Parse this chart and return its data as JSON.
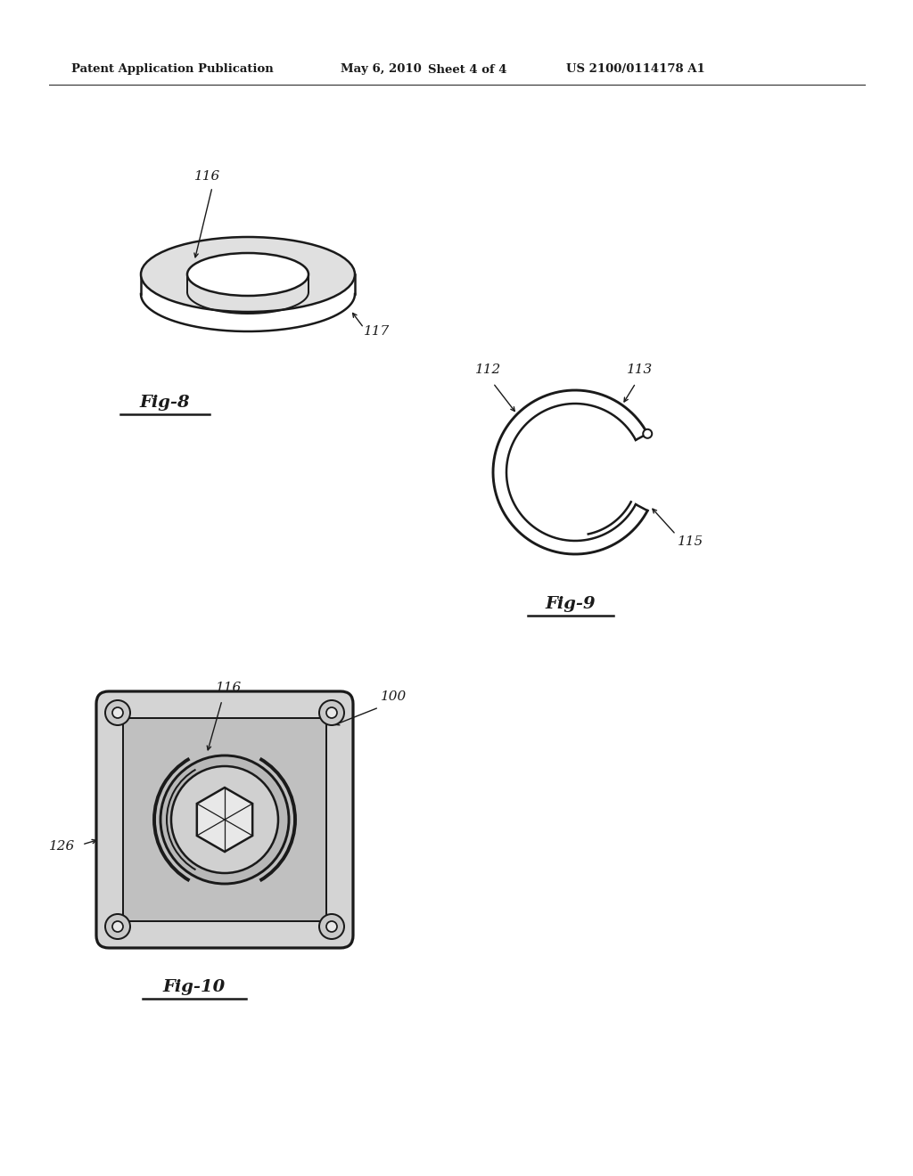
{
  "bg_color": "#ffffff",
  "header_text": "Patent Application Publication",
  "header_date": "May 6, 2010",
  "header_sheet": "Sheet 4 of 4",
  "header_patent": "US 2100/0114178 A1",
  "fig8_label": "Fig-8",
  "fig9_label": "Fig-9",
  "fig10_label": "Fig-10",
  "label_116_fig8": "116",
  "label_117_fig8": "117",
  "label_112_fig9": "112",
  "label_113_fig9": "113",
  "label_115_fig9": "115",
  "label_116_fig10": "116",
  "label_100_fig10": "100",
  "label_126_fig10": "126",
  "line_color": "#1a1a1a",
  "line_width": 1.8
}
